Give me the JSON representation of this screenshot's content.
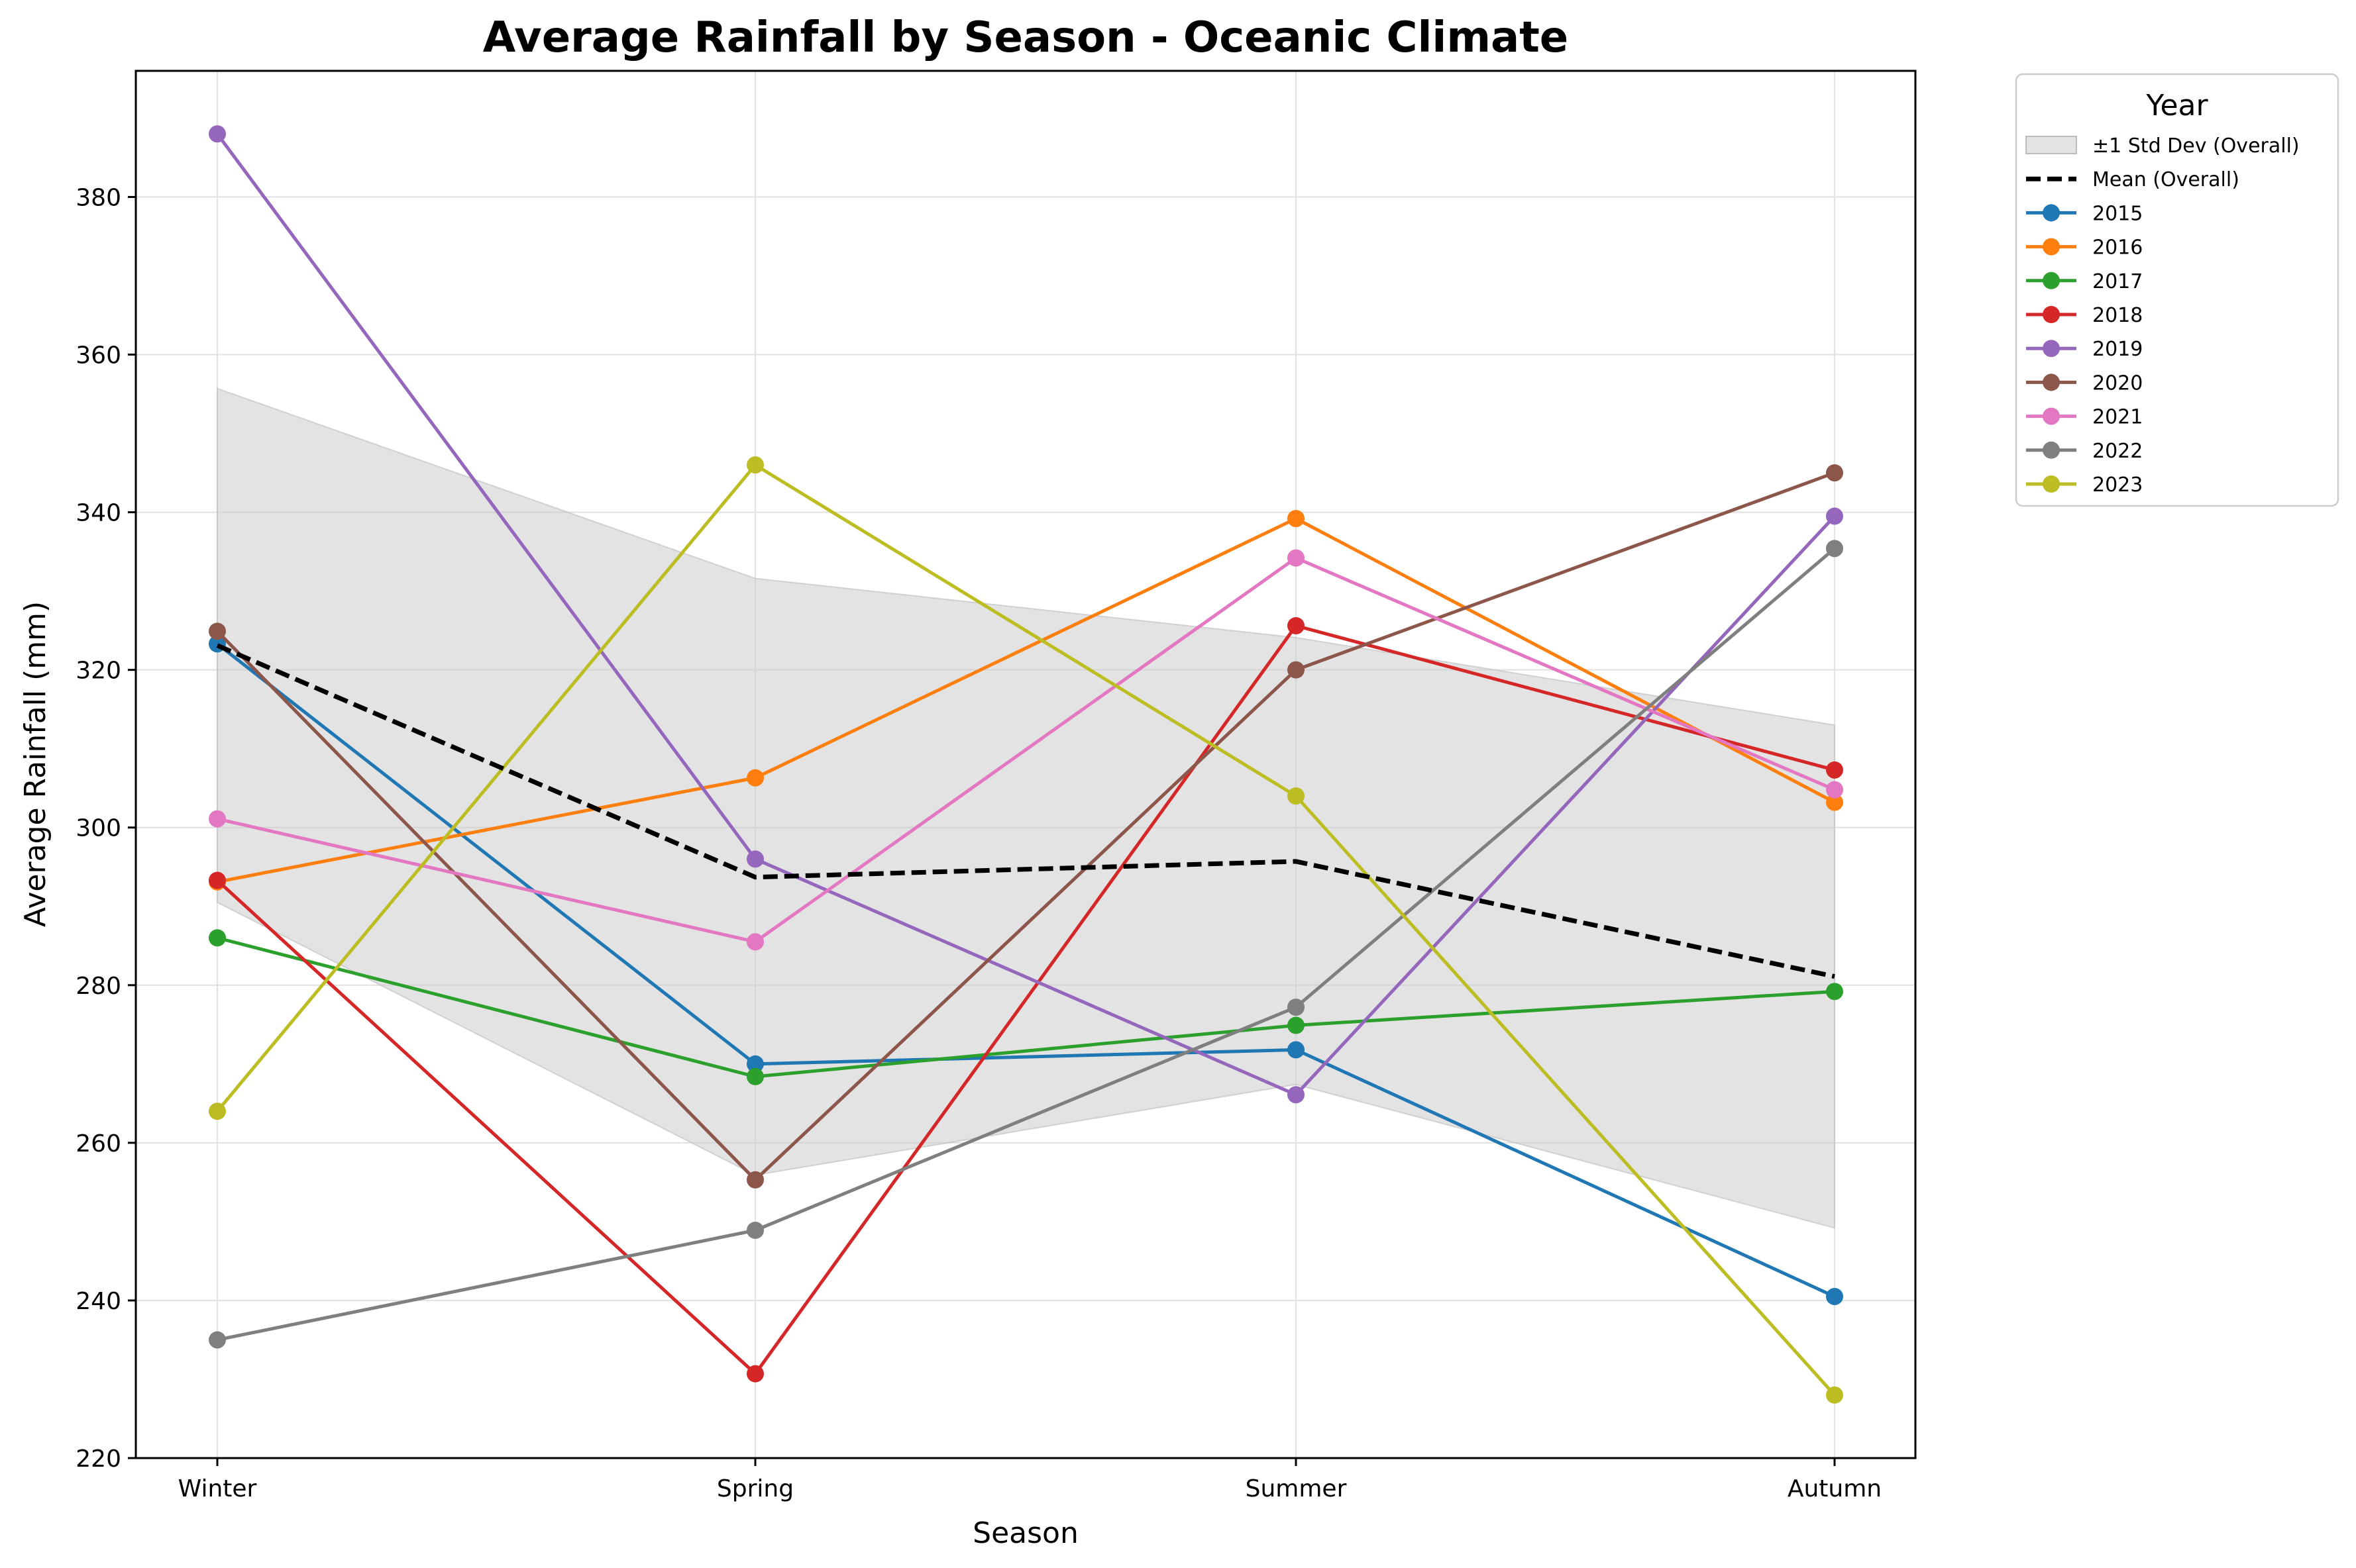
{
  "chart_data": {
    "type": "line",
    "title": "Average Rainfall by Season - Oceanic Climate",
    "xlabel": "Season",
    "ylabel": "Average Rainfall (mm)",
    "categories": [
      "Winter",
      "Spring",
      "Summer",
      "Autumn"
    ],
    "ylim": [
      220,
      396
    ],
    "yticks": [
      220,
      240,
      260,
      280,
      300,
      320,
      340,
      360,
      380
    ],
    "grid": true,
    "legend": {
      "title": "Year",
      "placement": "outside top-right"
    },
    "band": {
      "name": "±1 Std Dev (Overall)",
      "lower": [
        290.5,
        255.9,
        267.4,
        249.2
      ],
      "upper": [
        355.7,
        331.6,
        324.1,
        313.0
      ],
      "color": "#cccccc"
    },
    "mean": {
      "name": "Mean (Overall)",
      "values": [
        323.1,
        293.7,
        295.7,
        281.1
      ],
      "color": "#000000"
    },
    "series": [
      {
        "name": "2015",
        "values": [
          323.3,
          270.0,
          271.8,
          240.5
        ],
        "color": "#1f77b4"
      },
      {
        "name": "2016",
        "values": [
          293.1,
          306.3,
          339.2,
          303.2
        ],
        "color": "#ff7f0e"
      },
      {
        "name": "2017",
        "values": [
          286.0,
          268.4,
          274.9,
          279.2
        ],
        "color": "#2ca02c"
      },
      {
        "name": "2018",
        "values": [
          293.3,
          230.7,
          325.6,
          307.3
        ],
        "color": "#d62728"
      },
      {
        "name": "2019",
        "values": [
          388.0,
          296.0,
          266.1,
          339.5
        ],
        "color": "#9467bd"
      },
      {
        "name": "2020",
        "values": [
          324.9,
          255.3,
          320.0,
          345.0
        ],
        "color": "#8c564b"
      },
      {
        "name": "2021",
        "values": [
          301.1,
          285.5,
          334.2,
          304.8
        ],
        "color": "#e377c2"
      },
      {
        "name": "2022",
        "values": [
          235.0,
          248.9,
          277.2,
          335.4
        ],
        "color": "#7f7f7f"
      },
      {
        "name": "2023",
        "values": [
          264.0,
          346.0,
          304.0,
          228.0
        ],
        "color": "#bcbd22"
      }
    ]
  }
}
